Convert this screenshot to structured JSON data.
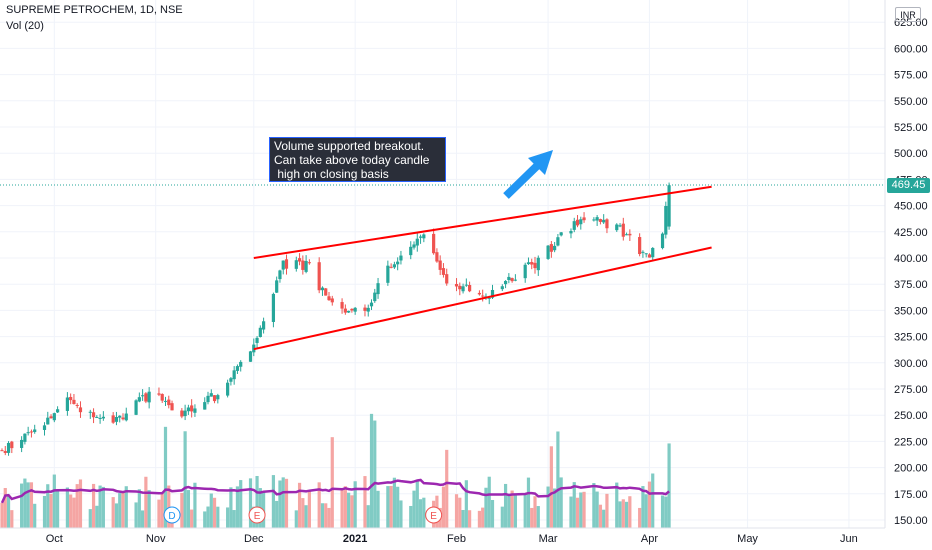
{
  "header": {
    "symbol_line": "SUPREME PETROCHEM, 1D, NSE",
    "indicator": "Vol (20)"
  },
  "currency_badge": "INR",
  "last_price_label": "469.45",
  "annotation": {
    "text": "Volume supported breakout.\nCan take above today candle\n high on closing basis"
  },
  "event_markers": [
    "D",
    "E",
    "E"
  ],
  "colors": {
    "up": "#26a69a",
    "down": "#ef5350",
    "up_volume": "#80cbc4",
    "down_volume": "#f5a5a3",
    "volume_ma": "#9c27b0",
    "trendline": "#ff0000",
    "arrow": "#2196f3"
  },
  "chart_data": {
    "type": "candlestick",
    "title": "SUPREME PETROCHEM, 1D, NSE",
    "y_ticks": [
      150,
      175,
      200,
      225,
      250,
      275,
      300,
      325,
      350,
      375,
      400,
      425,
      450,
      475,
      500,
      525,
      550,
      575,
      600,
      625
    ],
    "ylim": [
      145,
      640
    ],
    "x_ticks": [
      "Oct",
      "Nov",
      "Dec",
      "2021",
      "Feb",
      "Mar",
      "Apr",
      "May",
      "Jun"
    ],
    "last_price": 469.45,
    "price_range_estimates": {
      "start": 215,
      "mid_dec_high": 400,
      "jan_high": 435,
      "mar_high": 450,
      "last": 469.45
    },
    "trendlines": [
      {
        "name": "upper",
        "from": {
          "date": "2020-12-01",
          "price": 400
        },
        "to": {
          "date": "2021-04-20",
          "price": 468
        }
      },
      {
        "name": "lower",
        "from": {
          "date": "2020-12-01",
          "price": 313
        },
        "to": {
          "date": "2021-04-20",
          "price": 410
        }
      }
    ],
    "arrow_direction": "up-right",
    "volume_indicator": "Vol (20)",
    "grid": true
  }
}
